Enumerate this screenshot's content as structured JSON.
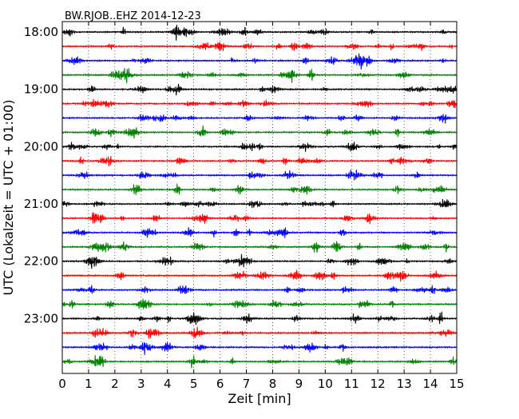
{
  "chart_data": {
    "type": "line",
    "title": "BW.RJOB..EHZ 2014-12-23",
    "xlabel": "Zeit  [min]",
    "ylabel": "UTC (Lokalzeit = UTC + 01:00)",
    "xlim": [
      0,
      15
    ],
    "x_ticks": [
      0,
      1,
      2,
      3,
      4,
      5,
      6,
      7,
      8,
      9,
      10,
      11,
      12,
      13,
      14,
      15
    ],
    "x_tick_labels": [
      "0",
      "1",
      "2",
      "3",
      "4",
      "5",
      "6",
      "7",
      "8",
      "9",
      "10",
      "11",
      "12",
      "13",
      "14",
      "15"
    ],
    "grid": "vertical dotted lines at each minute",
    "trace_minutes_per_line": 15,
    "start_time": "18:00",
    "y_tick_labels": [
      "18:00",
      "19:00",
      "20:00",
      "21:00",
      "22:00",
      "23:00"
    ],
    "y_tick_rows": [
      0,
      4,
      8,
      12,
      16,
      20
    ],
    "series": [
      {
        "row": 0,
        "color": "#000000"
      },
      {
        "row": 1,
        "color": "#ff0000"
      },
      {
        "row": 2,
        "color": "#0000ff"
      },
      {
        "row": 3,
        "color": "#007f00"
      },
      {
        "row": 4,
        "color": "#000000"
      },
      {
        "row": 5,
        "color": "#ff0000"
      },
      {
        "row": 6,
        "color": "#0000ff"
      },
      {
        "row": 7,
        "color": "#007f00"
      },
      {
        "row": 8,
        "color": "#000000"
      },
      {
        "row": 9,
        "color": "#ff0000"
      },
      {
        "row": 10,
        "color": "#0000ff"
      },
      {
        "row": 11,
        "color": "#007f00"
      },
      {
        "row": 12,
        "color": "#000000"
      },
      {
        "row": 13,
        "color": "#ff0000"
      },
      {
        "row": 14,
        "color": "#0000ff"
      },
      {
        "row": 15,
        "color": "#007f00"
      },
      {
        "row": 16,
        "color": "#000000"
      },
      {
        "row": 17,
        "color": "#ff0000"
      },
      {
        "row": 18,
        "color": "#0000ff"
      },
      {
        "row": 19,
        "color": "#007f00"
      },
      {
        "row": 20,
        "color": "#000000"
      },
      {
        "row": 21,
        "color": "#ff0000"
      },
      {
        "row": 22,
        "color": "#0000ff"
      },
      {
        "row": 23,
        "color": "#007f00"
      }
    ]
  }
}
